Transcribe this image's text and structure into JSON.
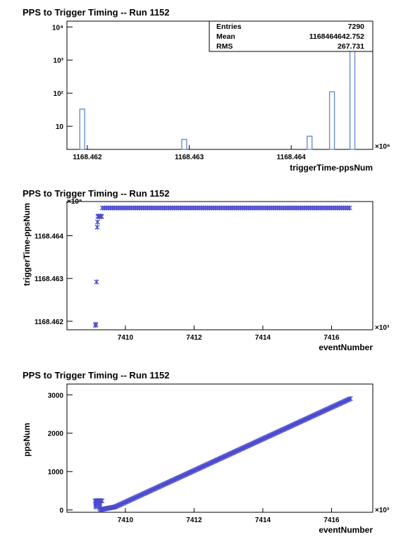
{
  "colors": {
    "marker": "#4b4bd0",
    "hist_line": "#6a8fd0",
    "frame": "#000000"
  },
  "chart_data": [
    {
      "type": "bar",
      "title": "PPS to Trigger Timing -- Run 1152",
      "xlabel": "triggerTime-ppsNum",
      "ylabel": "",
      "x_exponent_label": "×10⁶",
      "xlim": [
        1168.4618,
        1168.4648
      ],
      "ylog": true,
      "ylim": [
        2,
        15000
      ],
      "x_ticks": [
        1168.462,
        1168.463,
        1168.464
      ],
      "x_tick_labels": [
        "1168.462",
        "1168.463",
        "1168.464"
      ],
      "y_ticks": [
        10,
        100,
        1000,
        10000
      ],
      "y_tick_labels": [
        "10",
        "10²",
        "10³",
        "10⁴"
      ],
      "bar_width": 4.8e-05,
      "bars": [
        {
          "x": 1168.46195,
          "value": 33
        },
        {
          "x": 1168.46295,
          "value": 4
        },
        {
          "x": 1168.46418,
          "value": 5
        },
        {
          "x": 1168.4644,
          "value": 110
        },
        {
          "x": 1168.4646,
          "value": 7100
        }
      ],
      "stats": [
        {
          "label": "Entries",
          "value": "7290"
        },
        {
          "label": "Mean",
          "value": "1168464642.752"
        },
        {
          "label": "RMS",
          "value": "267.731"
        }
      ]
    },
    {
      "type": "scatter",
      "title": "PPS to Trigger Timing -- Run 1152",
      "xlabel": "eventNumber",
      "ylabel": "triggerTime-ppsNum",
      "x_exponent_label": "×10³",
      "y_exponent_label": "×10⁶",
      "xlim": [
        7408.3,
        7417.2
      ],
      "ylim": [
        1168.4618,
        1168.4648
      ],
      "x_ticks": [
        7410,
        7412,
        7414,
        7416
      ],
      "x_tick_labels": [
        "7410",
        "7412",
        "7414",
        "7416"
      ],
      "y_ticks": [
        1168.462,
        1168.463,
        1168.464
      ],
      "y_tick_labels": [
        "1168.462",
        "1168.463",
        "1168.464"
      ],
      "points": [
        {
          "x": 7409.13,
          "y": 1168.4619
        },
        {
          "x": 7409.14,
          "y": 1168.46193
        },
        {
          "x": 7409.16,
          "y": 1168.46292
        },
        {
          "x": 7409.18,
          "y": 1168.4642
        },
        {
          "x": 7409.19,
          "y": 1168.46432
        },
        {
          "x": 7409.2,
          "y": 1168.46445
        },
        {
          "x": 7409.22,
          "y": 1168.46446
        },
        {
          "x": 7409.25,
          "y": 1168.46444
        },
        {
          "x": 7409.28,
          "y": 1168.46446
        },
        {
          "x": 7409.31,
          "y": 1168.46445
        }
      ],
      "band": {
        "x_start": 7409.33,
        "x_end": 7416.55,
        "y": 1168.46465,
        "step": 0.06
      }
    },
    {
      "type": "scatter",
      "title": "PPS to Trigger Timing -- Run 1152",
      "xlabel": "eventNumber",
      "ylabel": "ppsNum",
      "x_exponent_label": "×10³",
      "xlim": [
        7408.3,
        7417.2
      ],
      "ylim": [
        -60,
        3280
      ],
      "x_ticks": [
        7410,
        7412,
        7414,
        7416
      ],
      "x_tick_labels": [
        "7410",
        "7412",
        "7414",
        "7416"
      ],
      "y_ticks": [
        0,
        1000,
        2000,
        3000
      ],
      "y_tick_labels": [
        "0",
        "1000",
        "2000",
        "3000"
      ],
      "step": 0.035,
      "segments": [
        {
          "x0": 7409.12,
          "y0": 240,
          "x1": 7409.32,
          "y1": 240
        },
        {
          "x0": 7409.14,
          "y0": 200,
          "x1": 7409.14,
          "y1": 80
        },
        {
          "x0": 7409.25,
          "y0": 200,
          "x1": 7409.25,
          "y1": 40
        },
        {
          "x0": 7409.28,
          "y0": 10,
          "x1": 7409.7,
          "y1": 80
        },
        {
          "x0": 7409.7,
          "y0": 80,
          "x1": 7416.55,
          "y1": 2900
        }
      ]
    }
  ]
}
